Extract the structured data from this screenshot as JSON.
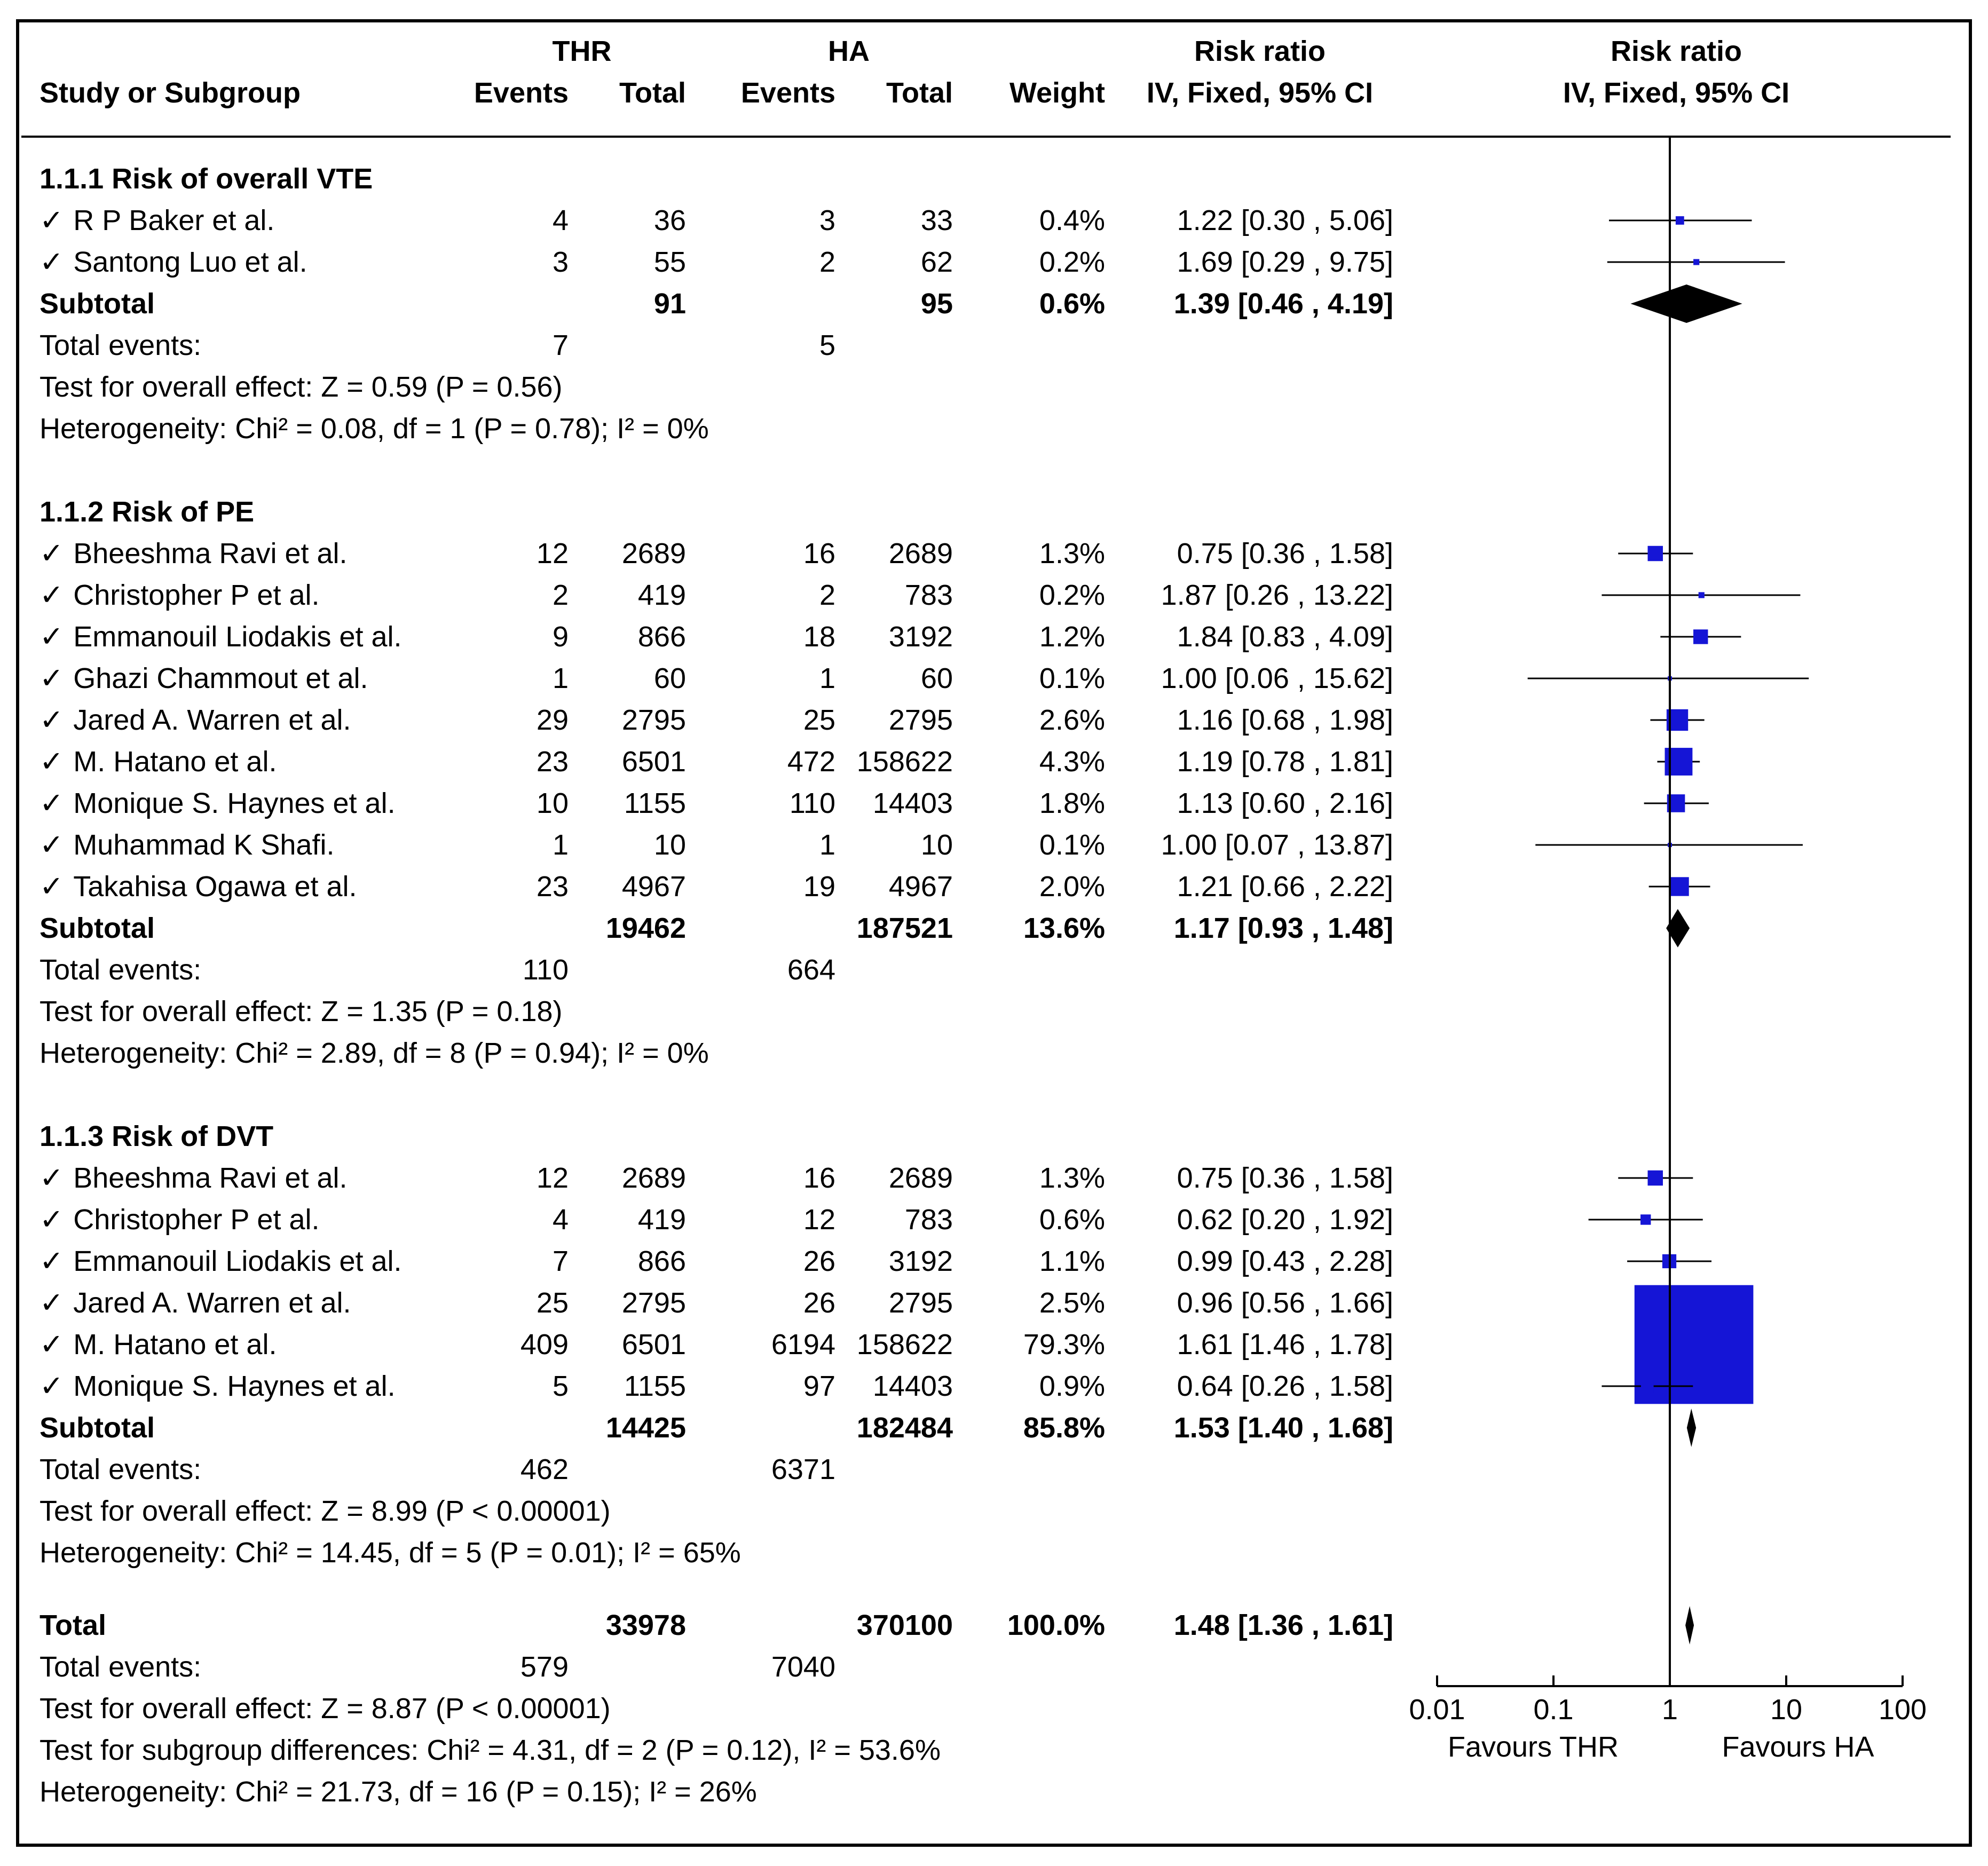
{
  "chart_data": {
    "type": "forest",
    "header": {
      "study_col": "Study or Subgroup",
      "group1": "THR",
      "group2": "HA",
      "events": "Events",
      "total": "Total",
      "weight": "Weight",
      "effect_title": "Risk ratio",
      "effect_method": "IV, Fixed, 95% CI"
    },
    "check": "✓",
    "x_scale": "log",
    "x_ticks": [
      0.01,
      0.1,
      1,
      10,
      100
    ],
    "x_tick_labels": [
      "0.01",
      "0.1",
      "1",
      "10",
      "100"
    ],
    "favours_left": "Favours THR",
    "favours_right": "Favours HA",
    "subgroups": [
      {
        "title": "1.1.1 Risk of  overall VTE",
        "studies": [
          {
            "name": "R P Baker et al.",
            "e1": "4",
            "n1": "36",
            "e2": "3",
            "n2": "33",
            "weight": "0.4%",
            "ci_text": "1.22 [0.30 , 5.06]",
            "rr": 1.22,
            "lo": 0.3,
            "hi": 5.06,
            "w": 0.4
          },
          {
            "name": "Santong Luo et al.",
            "e1": "3",
            "n1": "55",
            "e2": "2",
            "n2": "62",
            "weight": "0.2%",
            "ci_text": "1.69 [0.29 , 9.75]",
            "rr": 1.69,
            "lo": 0.29,
            "hi": 9.75,
            "w": 0.2
          }
        ],
        "subtotal": {
          "label": "Subtotal",
          "n1": "91",
          "n2": "95",
          "weight": "0.6%",
          "ci_text": "1.39 [0.46 , 4.19]",
          "rr": 1.39,
          "lo": 0.46,
          "hi": 4.19
        },
        "events": {
          "label": "Total events:",
          "e1": "7",
          "e2": "5"
        },
        "test": "Test for overall effect: Z = 0.59 (P = 0.56)",
        "heterogeneity": "Heterogeneity: Chi² = 0.08, df = 1 (P = 0.78); I² = 0%"
      },
      {
        "title": "1.1.2 Risk of PE",
        "studies": [
          {
            "name": "Bheeshma Ravi et al.",
            "e1": "12",
            "n1": "2689",
            "e2": "16",
            "n2": "2689",
            "weight": "1.3%",
            "ci_text": "0.75 [0.36 , 1.58]",
            "rr": 0.75,
            "lo": 0.36,
            "hi": 1.58,
            "w": 1.3
          },
          {
            "name": "Christopher P et al.",
            "e1": "2",
            "n1": "419",
            "e2": "2",
            "n2": "783",
            "weight": "0.2%",
            "ci_text": "1.87 [0.26 , 13.22]",
            "rr": 1.87,
            "lo": 0.26,
            "hi": 13.22,
            "w": 0.2
          },
          {
            "name": "Emmanouil Liodakis et al.",
            "e1": "9",
            "n1": "866",
            "e2": "18",
            "n2": "3192",
            "weight": "1.2%",
            "ci_text": "1.84 [0.83 , 4.09]",
            "rr": 1.84,
            "lo": 0.83,
            "hi": 4.09,
            "w": 1.2
          },
          {
            "name": "Ghazi Chammout et al.",
            "e1": "1",
            "n1": "60",
            "e2": "1",
            "n2": "60",
            "weight": "0.1%",
            "ci_text": "1.00 [0.06 , 15.62]",
            "rr": 1.0,
            "lo": 0.06,
            "hi": 15.62,
            "w": 0.1
          },
          {
            "name": "Jared A. Warren et al.",
            "e1": "29",
            "n1": "2795",
            "e2": "25",
            "n2": "2795",
            "weight": "2.6%",
            "ci_text": "1.16 [0.68 , 1.98]",
            "rr": 1.16,
            "lo": 0.68,
            "hi": 1.98,
            "w": 2.6
          },
          {
            "name": "M. Hatano et al.",
            "e1": "23",
            "n1": "6501",
            "e2": "472",
            "n2": "158622",
            "weight": "4.3%",
            "ci_text": "1.19 [0.78 , 1.81]",
            "rr": 1.19,
            "lo": 0.78,
            "hi": 1.81,
            "w": 4.3
          },
          {
            "name": "Monique S. Haynes et al.",
            "e1": "10",
            "n1": "1155",
            "e2": "110",
            "n2": "14403",
            "weight": "1.8%",
            "ci_text": "1.13 [0.60 , 2.16]",
            "rr": 1.13,
            "lo": 0.6,
            "hi": 2.16,
            "w": 1.8
          },
          {
            "name": "Muhammad K Shafi.",
            "e1": "1",
            "n1": "10",
            "e2": "1",
            "n2": "10",
            "weight": "0.1%",
            "ci_text": "1.00 [0.07 , 13.87]",
            "rr": 1.0,
            "lo": 0.07,
            "hi": 13.87,
            "w": 0.1
          },
          {
            "name": "Takahisa Ogawa et al.",
            "e1": "23",
            "n1": "4967",
            "e2": "19",
            "n2": "4967",
            "weight": "2.0%",
            "ci_text": "1.21 [0.66 , 2.22]",
            "rr": 1.21,
            "lo": 0.66,
            "hi": 2.22,
            "w": 2.0
          }
        ],
        "subtotal": {
          "label": "Subtotal",
          "n1": "19462",
          "n2": "187521",
          "weight": "13.6%",
          "ci_text": "1.17 [0.93 , 1.48]",
          "rr": 1.17,
          "lo": 0.93,
          "hi": 1.48
        },
        "events": {
          "label": "Total events:",
          "e1": "110",
          "e2": "664"
        },
        "test": "Test for overall effect: Z = 1.35 (P = 0.18)",
        "heterogeneity": "Heterogeneity: Chi² = 2.89, df = 8 (P = 0.94); I² = 0%"
      },
      {
        "title": "1.1.3 Risk of DVT",
        "studies": [
          {
            "name": "Bheeshma Ravi et al.",
            "e1": "12",
            "n1": "2689",
            "e2": "16",
            "n2": "2689",
            "weight": "1.3%",
            "ci_text": "0.75 [0.36 , 1.58]",
            "rr": 0.75,
            "lo": 0.36,
            "hi": 1.58,
            "w": 1.3
          },
          {
            "name": "Christopher P et al.",
            "e1": "4",
            "n1": "419",
            "e2": "12",
            "n2": "783",
            "weight": "0.6%",
            "ci_text": "0.62 [0.20 , 1.92]",
            "rr": 0.62,
            "lo": 0.2,
            "hi": 1.92,
            "w": 0.6
          },
          {
            "name": "Emmanouil Liodakis et al.",
            "e1": "7",
            "n1": "866",
            "e2": "26",
            "n2": "3192",
            "weight": "1.1%",
            "ci_text": "0.99 [0.43 , 2.28]",
            "rr": 0.99,
            "lo": 0.43,
            "hi": 2.28,
            "w": 1.1
          },
          {
            "name": "Jared A. Warren et al.",
            "e1": "25",
            "n1": "2795",
            "e2": "26",
            "n2": "2795",
            "weight": "2.5%",
            "ci_text": "0.96 [0.56 , 1.66]",
            "rr": 0.96,
            "lo": 0.56,
            "hi": 1.66,
            "w": 2.5
          },
          {
            "name": "M. Hatano et al.",
            "e1": "409",
            "n1": "6501",
            "e2": "6194",
            "n2": "158622",
            "weight": "79.3%",
            "ci_text": "1.61 [1.46 , 1.78]",
            "rr": 1.61,
            "lo": 1.46,
            "hi": 1.78,
            "w": 79.3
          },
          {
            "name": "Monique S. Haynes et al.",
            "e1": "5",
            "n1": "1155",
            "e2": "97",
            "n2": "14403",
            "weight": "0.9%",
            "ci_text": "0.64 [0.26 , 1.58]",
            "rr": 0.64,
            "lo": 0.26,
            "hi": 1.58,
            "w": 0.9
          }
        ],
        "subtotal": {
          "label": "Subtotal",
          "n1": "14425",
          "n2": "182484",
          "weight": "85.8%",
          "ci_text": "1.53 [1.40 , 1.68]",
          "rr": 1.53,
          "lo": 1.4,
          "hi": 1.68
        },
        "events": {
          "label": "Total events:",
          "e1": "462",
          "e2": "6371"
        },
        "test": "Test for overall effect: Z = 8.99 (P < 0.00001)",
        "heterogeneity": "Heterogeneity: Chi² = 14.45, df = 5 (P = 0.01); I² = 65%"
      }
    ],
    "total": {
      "label": "Total",
      "n1": "33978",
      "n2": "370100",
      "weight": "100.0%",
      "ci_text": "1.48 [1.36 , 1.61]",
      "rr": 1.48,
      "lo": 1.36,
      "hi": 1.61,
      "events": {
        "label": "Total events:",
        "e1": "579",
        "e2": "7040"
      },
      "test": "Test for overall effect: Z = 8.87 (P < 0.00001)",
      "subgroup_diff": "Test for subgroup differences: Chi² = 4.31, df = 2 (P = 0.12), I² = 53.6%",
      "heterogeneity": "Heterogeneity: Chi² = 21.73, df = 16 (P = 0.15); I² = 26%"
    },
    "colors": {
      "square": "#1515d6",
      "diamond": "#000000",
      "line": "#000000"
    }
  }
}
